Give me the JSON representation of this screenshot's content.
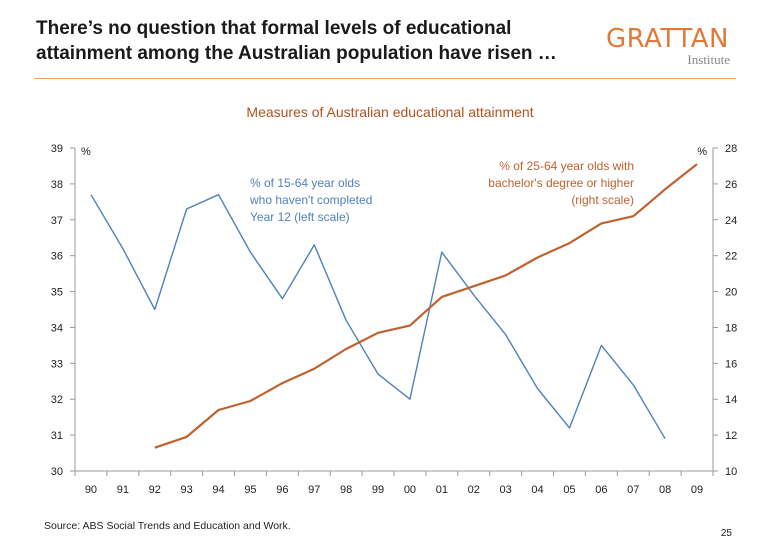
{
  "slide": {
    "title_line1": "There’s no question that formal levels of educational",
    "title_line2": "attainment among the Australian population have risen …",
    "logo_main": "GRATTAN",
    "logo_sub": "Institute",
    "source_text": "Source: ABS Social Trends and Education and Work.",
    "page_number": "25",
    "accent_color": "#e7a163"
  },
  "chart_data": {
    "type": "line",
    "title": "Measures of Australian educational attainment",
    "categories": [
      "90",
      "91",
      "92",
      "93",
      "94",
      "95",
      "96",
      "97",
      "98",
      "99",
      "00",
      "01",
      "02",
      "03",
      "04",
      "05",
      "06",
      "07",
      "08",
      "09"
    ],
    "left_axis": {
      "unit": "%",
      "min": 30,
      "max": 39,
      "ticks": [
        30,
        31,
        32,
        33,
        34,
        35,
        36,
        37,
        38,
        39
      ]
    },
    "right_axis": {
      "unit": "%",
      "min": 10,
      "max": 28,
      "ticks": [
        10,
        12,
        14,
        16,
        18,
        20,
        22,
        24,
        26,
        28
      ]
    },
    "series": [
      {
        "name": "% of 15-64 year olds who haven't completed Year 12 (left scale)",
        "label_lines": [
          "% of 15-64 year olds",
          "who haven't completed",
          "Year 12 (left scale)"
        ],
        "axis": "left",
        "color": "#4f81bd",
        "values": [
          37.7,
          36.2,
          34.5,
          37.3,
          37.7,
          36.1,
          34.8,
          36.3,
          34.2,
          32.7,
          32.0,
          36.1,
          34.9,
          33.8,
          32.3,
          31.2,
          33.5,
          32.4,
          30.9,
          null
        ]
      },
      {
        "name": "% of 25-64 year olds with bachelor's degree or higher (right scale)",
        "label_lines": [
          "% of 25-64 year olds with",
          "bachelor's degree or higher",
          "(right scale)"
        ],
        "axis": "right",
        "color": "#c0622e",
        "values": [
          null,
          null,
          11.3,
          11.9,
          13.4,
          13.9,
          14.9,
          15.7,
          16.8,
          17.7,
          18.1,
          19.7,
          20.3,
          20.9,
          21.9,
          22.7,
          23.8,
          24.2,
          25.7,
          27.1
        ]
      }
    ],
    "grid": false,
    "legend": "inline-labels"
  }
}
